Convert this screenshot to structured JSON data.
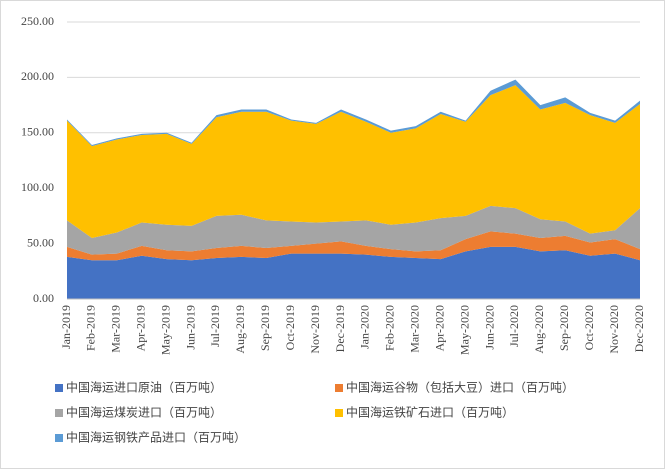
{
  "chart_data": {
    "type": "stacked-area",
    "categories": [
      "Jan-2019",
      "Feb-2019",
      "Mar-2019",
      "Apr-2019",
      "May-2019",
      "Jun-2019",
      "Jul-2019",
      "Aug-2019",
      "Sep-2019",
      "Oct-2019",
      "Nov-2019",
      "Dec-2019",
      "Jan-2020",
      "Feb-2020",
      "Mar-2020",
      "Apr-2020",
      "May-2020",
      "Jun-2020",
      "Jul-2020",
      "Aug-2020",
      "Sep-2020",
      "Oct-2020",
      "Nov-2020",
      "Dec-2020"
    ],
    "series": [
      {
        "name": "中国海运进口原油（百万吨）",
        "color": "#4472c4",
        "values": [
          38,
          35,
          35,
          39,
          36,
          35,
          37,
          38,
          37,
          41,
          41,
          41,
          40,
          38,
          37,
          36,
          43,
          47,
          47,
          43,
          44,
          39,
          41,
          35
        ]
      },
      {
        "name": "中国海运谷物（包括大豆）进口（百万吨）",
        "color": "#ed7d31",
        "values": [
          9,
          5,
          6,
          9,
          8,
          8,
          9,
          10,
          9,
          7,
          9,
          11,
          8,
          7,
          6,
          8,
          11,
          14,
          12,
          12,
          13,
          12,
          13,
          10
        ]
      },
      {
        "name": "中国海运煤炭进口（百万吨）",
        "color": "#a5a5a5",
        "values": [
          24,
          15,
          19,
          21,
          23,
          23,
          29,
          28,
          25,
          22,
          19,
          18,
          23,
          22,
          26,
          29,
          21,
          23,
          23,
          17,
          13,
          8,
          8,
          37
        ]
      },
      {
        "name": "中国海运铁矿石进口（百万吨）",
        "color": "#ffc000",
        "values": [
          90,
          83,
          84,
          79,
          82,
          74,
          89,
          93,
          98,
          91,
          89,
          99,
          89,
          83,
          85,
          94,
          85,
          100,
          111,
          99,
          107,
          107,
          97,
          94
        ]
      },
      {
        "name": "中国海运钢铁产品进口（百万吨）",
        "color": "#5b9bd5",
        "values": [
          1,
          1,
          1,
          1,
          1,
          1,
          2,
          2,
          2,
          1,
          1,
          2,
          2,
          2,
          2,
          2,
          1,
          4,
          5,
          4,
          5,
          2,
          2,
          3
        ]
      }
    ],
    "ylim": [
      0,
      250
    ],
    "yticks": [
      {
        "value": 0,
        "label": "0.00"
      },
      {
        "value": 50,
        "label": "50.00"
      },
      {
        "value": 100,
        "label": "100.00"
      },
      {
        "value": 150,
        "label": "150.00"
      },
      {
        "value": 200,
        "label": "200.00"
      },
      {
        "value": 250,
        "label": "250.00"
      }
    ],
    "grid": true
  }
}
